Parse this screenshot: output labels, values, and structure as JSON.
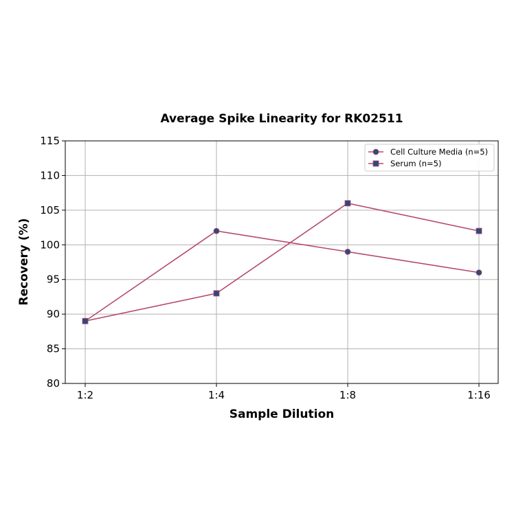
{
  "chart_data": {
    "type": "line",
    "title": "Average Spike Linearity for RK02511",
    "xlabel": "Sample Dilution",
    "ylabel": "Recovery (%)",
    "categories": [
      "1:2",
      "1:4",
      "1:8",
      "1:16"
    ],
    "ylim": [
      80,
      115
    ],
    "yticks": [
      80,
      85,
      90,
      95,
      100,
      105,
      110,
      115
    ],
    "grid": true,
    "legend_position": "upper right",
    "series": [
      {
        "name": "Cell Culture Media (n=5)",
        "marker": "circle",
        "values": [
          89,
          102,
          99,
          96
        ]
      },
      {
        "name": "Serum (n=5)",
        "marker": "square",
        "values": [
          89,
          93,
          106,
          102
        ]
      }
    ]
  },
  "colors": {
    "line": "#b5496e",
    "marker": "#2e4a7a",
    "grid": "#b0b0b0"
  }
}
